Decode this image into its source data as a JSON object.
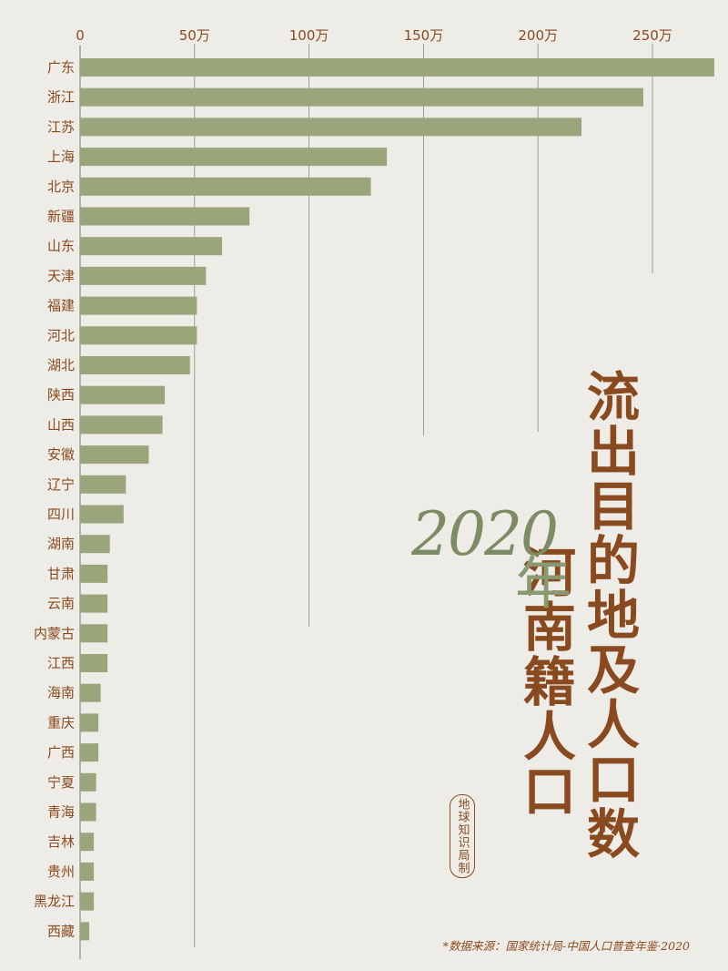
{
  "chart_data": {
    "type": "bar",
    "orientation": "horizontal",
    "categories": [
      "广东",
      "浙江",
      "江苏",
      "上海",
      "北京",
      "新疆",
      "山东",
      "天津",
      "福建",
      "河北",
      "湖北",
      "陕西",
      "山西",
      "安徽",
      "辽宁",
      "四川",
      "湖南",
      "甘肃",
      "云南",
      "内蒙古",
      "江西",
      "海南",
      "重庆",
      "广西",
      "宁夏",
      "青海",
      "吉林",
      "贵州",
      "黑龙江",
      "西藏"
    ],
    "values": [
      277,
      246,
      219,
      134,
      127,
      74,
      62,
      55,
      51,
      51,
      48,
      37,
      36,
      30,
      20,
      19,
      13,
      12,
      12,
      12,
      12,
      9,
      8,
      8,
      7,
      7,
      6,
      6,
      6,
      4
    ],
    "unit": "万",
    "xlim": [
      0,
      280
    ],
    "ticks": [
      0,
      50,
      100,
      150,
      200,
      250
    ],
    "tick_labels": [
      "0",
      "50万",
      "100万",
      "150万",
      "200万",
      "250万"
    ],
    "grid": true,
    "bar_color": "#9aa57c"
  },
  "title": {
    "line1": "流出目的地及人口数",
    "line2": "河南籍人口",
    "year_number": "2020",
    "year_char": "年"
  },
  "brand": "地球知识局制",
  "source": "*数据来源：国家统计局-中国人口普查年鉴·2020",
  "colors": {
    "background": "#eeece6",
    "bar": "#9aa57c",
    "accent": "#8a4a1f",
    "year": "#7e8c66"
  }
}
